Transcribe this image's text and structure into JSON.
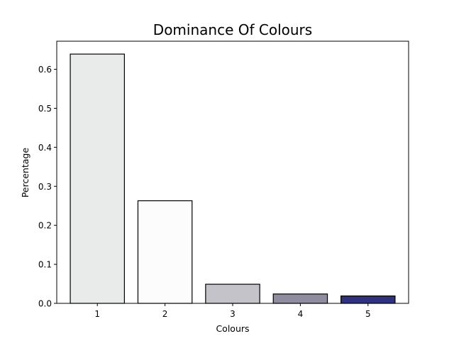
{
  "chart_data": {
    "type": "bar",
    "title": "Dominance Of Colours",
    "xlabel": "Colours",
    "ylabel": "Percentage",
    "categories": [
      "1",
      "2",
      "3",
      "4",
      "5"
    ],
    "values": [
      0.639,
      0.263,
      0.049,
      0.024,
      0.019
    ],
    "bar_colors": [
      "#e9ebea",
      "#fcfcfc",
      "#c4c3ca",
      "#8e8c9e",
      "#2e3280"
    ],
    "bar_edge_color": "#000000",
    "ylim": [
      0,
      0.672
    ],
    "yticks": [
      0.0,
      0.1,
      0.2,
      0.3,
      0.4,
      0.5,
      0.6
    ],
    "ytick_labels": [
      "0.0",
      "0.1",
      "0.2",
      "0.3",
      "0.4",
      "0.5",
      "0.6"
    ],
    "grid": false,
    "legend": "none"
  }
}
